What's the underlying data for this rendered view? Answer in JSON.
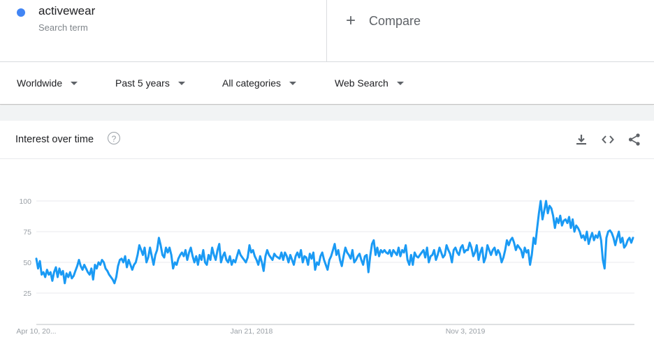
{
  "search_term": {
    "name": "activewear",
    "type_label": "Search term",
    "color": "#4285f4"
  },
  "compare": {
    "icon": "plus-icon",
    "label": "Compare"
  },
  "filters": [
    {
      "label": "Worldwide"
    },
    {
      "label": "Past 5 years"
    },
    {
      "label": "All categories"
    },
    {
      "label": "Web Search"
    }
  ],
  "widget": {
    "title": "Interest over time",
    "help_icon": "help-circle-icon",
    "help_glyph": "?",
    "actions": [
      "download-icon",
      "embed-code-icon",
      "share-icon"
    ]
  },
  "chart_data": {
    "type": "line",
    "x_tick_labels": [
      "Apr 10, 20...",
      "Jan 21, 2018",
      "Nov 3, 2019"
    ],
    "y_tick_labels": [
      "100",
      "75",
      "50",
      "25"
    ],
    "ylim": [
      0,
      100
    ],
    "grid": true,
    "series_color": "#1a9af4",
    "series": [
      {
        "values": [
          53,
          45,
          51,
          40,
          42,
          38,
          44,
          40,
          42,
          35,
          42,
          46,
          38,
          45,
          40,
          43,
          33,
          41,
          38,
          42,
          37,
          39,
          43,
          47,
          52,
          47,
          44,
          48,
          45,
          42,
          40,
          45,
          36,
          48,
          45,
          50,
          48,
          52,
          50,
          45,
          43,
          40,
          38,
          36,
          33,
          38,
          47,
          52,
          53,
          50,
          55,
          46,
          52,
          48,
          44,
          48,
          50,
          56,
          64,
          60,
          56,
          62,
          50,
          54,
          62,
          55,
          48,
          56,
          60,
          70,
          64,
          56,
          54,
          62,
          58,
          62,
          56,
          45,
          50,
          48,
          53,
          56,
          58,
          55,
          60,
          52,
          58,
          62,
          55,
          50,
          55,
          48,
          56,
          52,
          60,
          50,
          48,
          56,
          52,
          62,
          56,
          52,
          60,
          65,
          50,
          55,
          58,
          52,
          50,
          55,
          48,
          52,
          50,
          55,
          60,
          56,
          54,
          52,
          50,
          54,
          64,
          58,
          60,
          55,
          52,
          48,
          55,
          50,
          43,
          55,
          60,
          56,
          54,
          52,
          57,
          55,
          54,
          53,
          58,
          52,
          58,
          55,
          50,
          56,
          52,
          48,
          55,
          58,
          54,
          60,
          50,
          55,
          54,
          48,
          57,
          53,
          58,
          44,
          50,
          48,
          55,
          58,
          52,
          48,
          44,
          52,
          55,
          60,
          65,
          56,
          60,
          52,
          47,
          55,
          62,
          58,
          56,
          53,
          60,
          50,
          52,
          55,
          57,
          52,
          48,
          55,
          56,
          42,
          55,
          65,
          68,
          56,
          62,
          55,
          60,
          58,
          60,
          58,
          57,
          60,
          55,
          60,
          58,
          56,
          62,
          55,
          60,
          58,
          64,
          52,
          48,
          56,
          48,
          58,
          55,
          54,
          56,
          58,
          60,
          54,
          62,
          50,
          55,
          56,
          60,
          52,
          56,
          62,
          58,
          54,
          56,
          64,
          60,
          57,
          50,
          60,
          62,
          58,
          56,
          62,
          64,
          58,
          60,
          60,
          66,
          62,
          55,
          58,
          64,
          52,
          58,
          62,
          50,
          54,
          64,
          60,
          56,
          60,
          62,
          56,
          60,
          57,
          50,
          54,
          60,
          68,
          64,
          68,
          70,
          66,
          60,
          64,
          62,
          60,
          54,
          62,
          58,
          60,
          48,
          56,
          70,
          65,
          78,
          90,
          100,
          85,
          92,
          100,
          90,
          96,
          94,
          88,
          78,
          86,
          82,
          88,
          80,
          84,
          85,
          82,
          87,
          78,
          85,
          75,
          80,
          78,
          75,
          70,
          72,
          68,
          75,
          65,
          70,
          74,
          68,
          72,
          70,
          75,
          68,
          52,
          45,
          70,
          75,
          76,
          74,
          70,
          64,
          70,
          75,
          66,
          70,
          62,
          64,
          68,
          70,
          66,
          70
        ]
      }
    ]
  }
}
